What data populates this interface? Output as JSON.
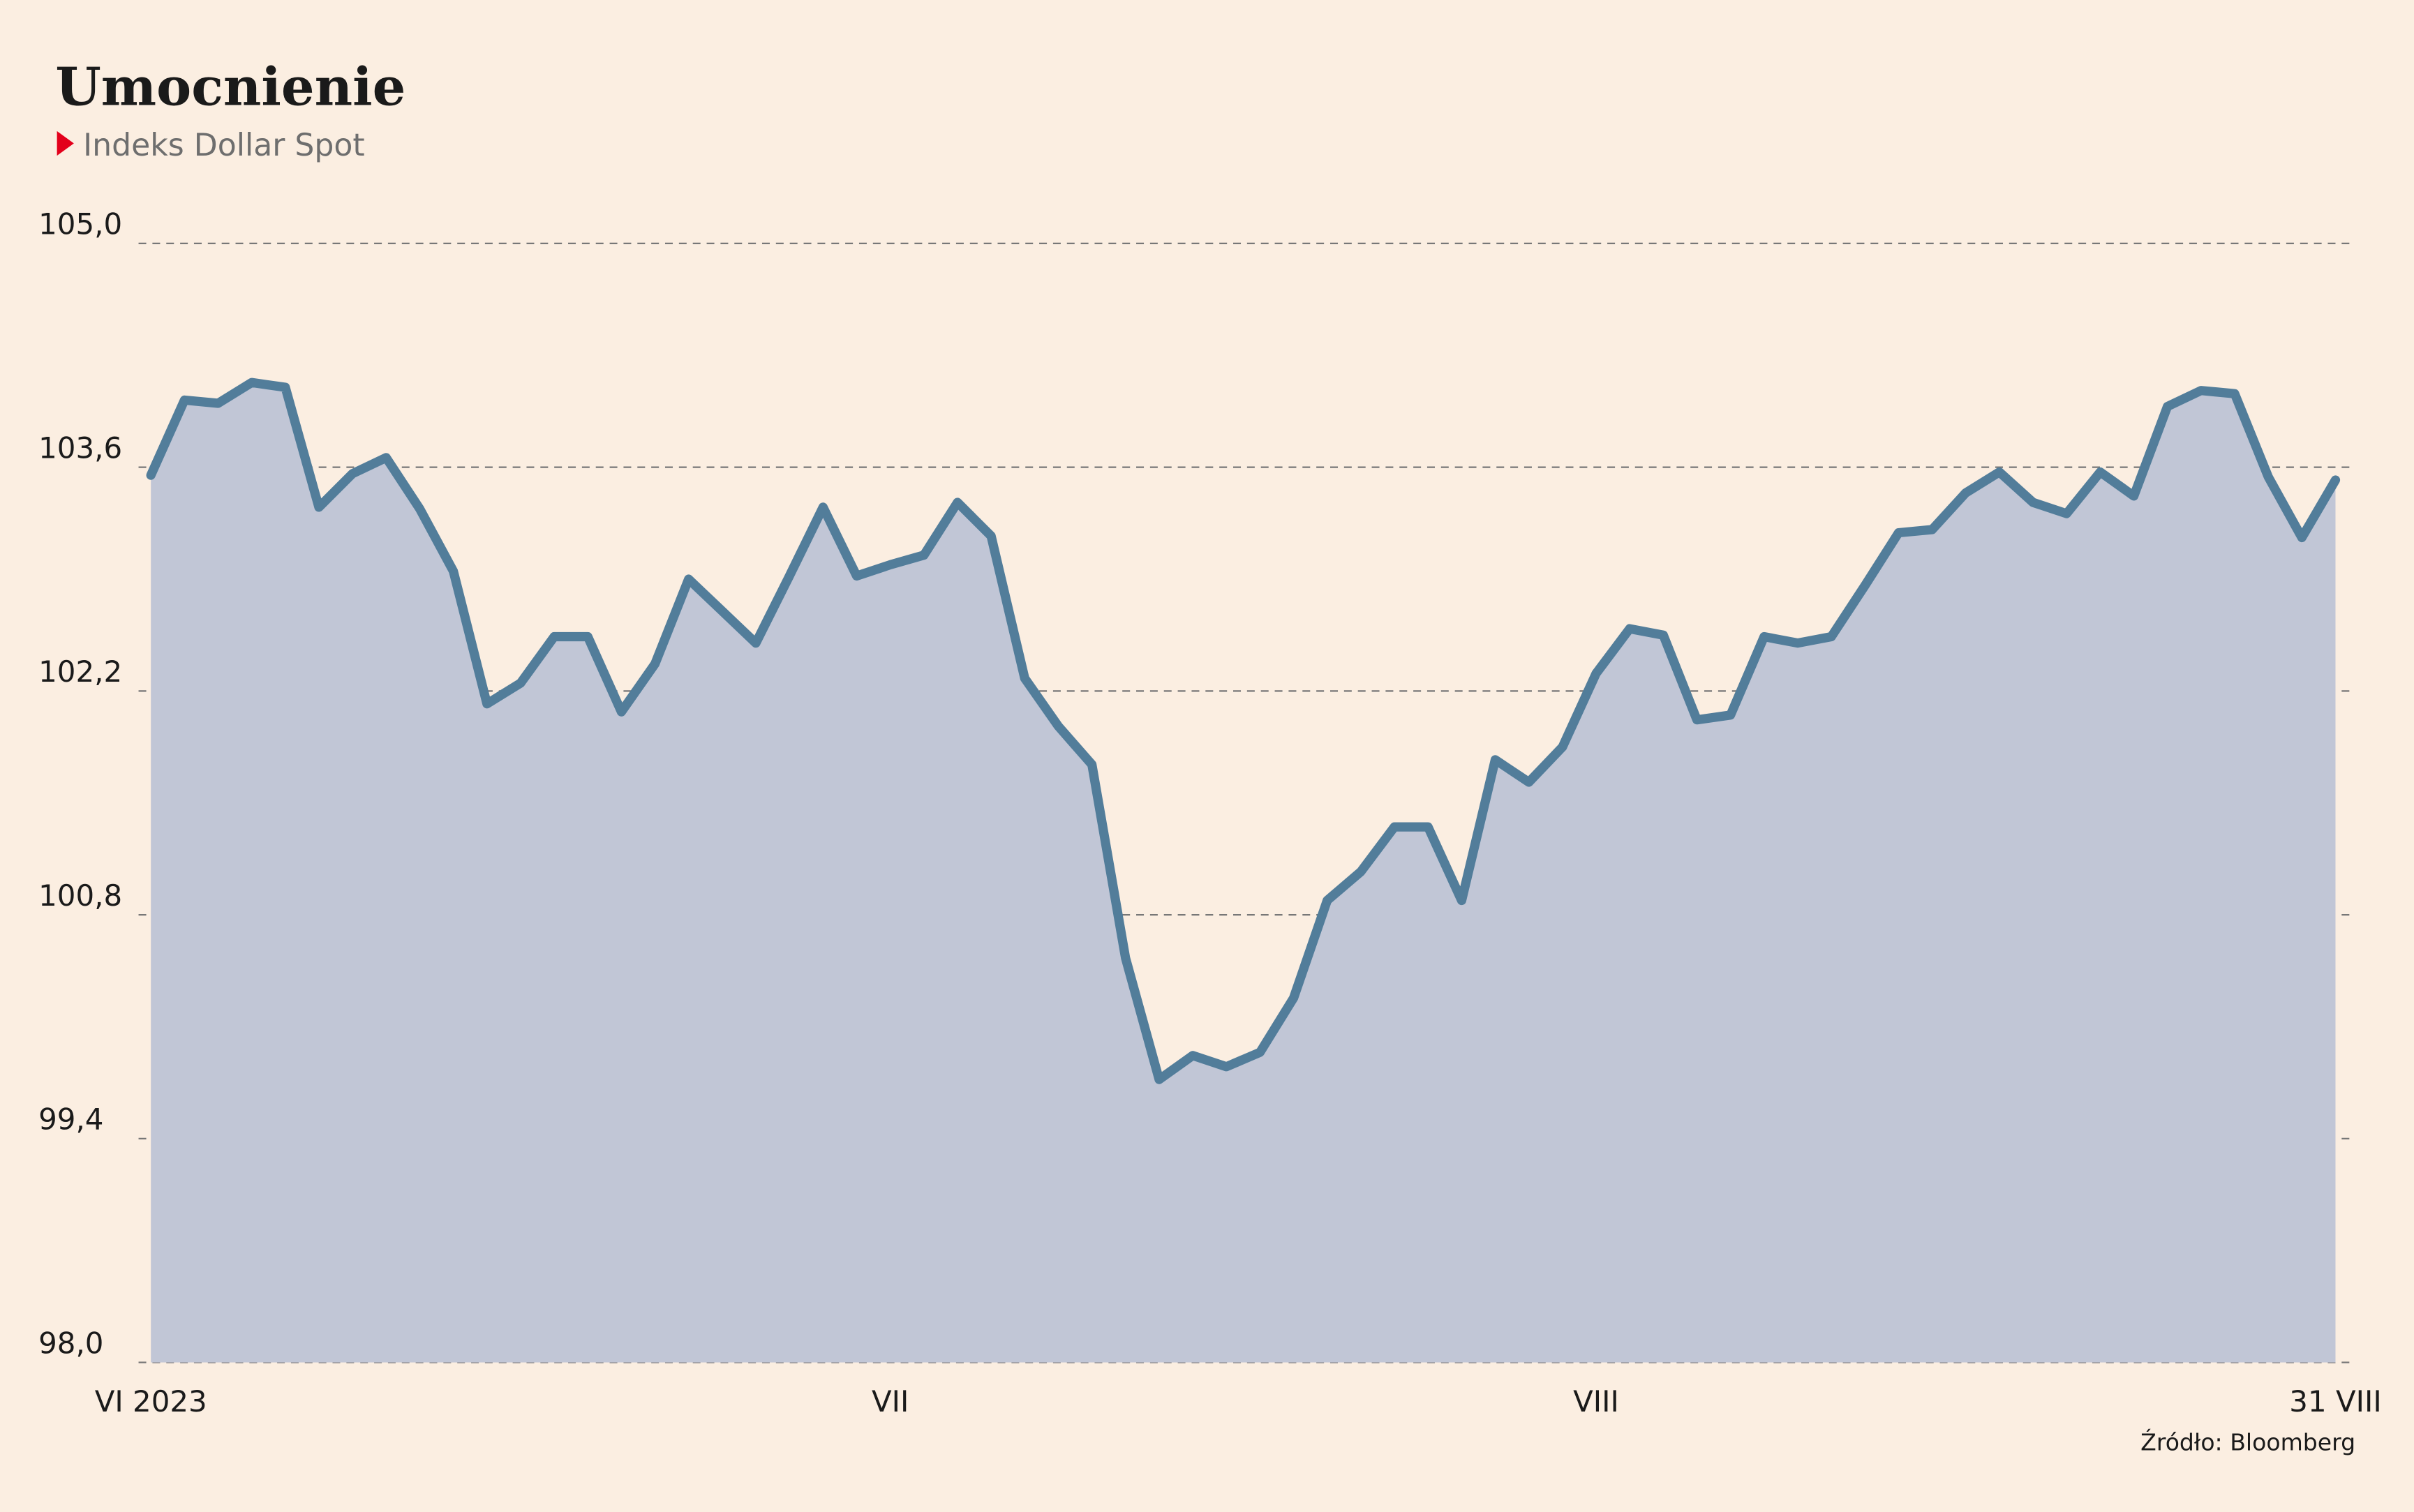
{
  "chart_data": {
    "type": "area",
    "title": "Umocnienie",
    "subtitle": "Indeks Dollar Spot",
    "source": "Źródło: Bloomberg",
    "categories": [
      "VI 2023",
      null,
      null,
      null,
      null,
      null,
      null,
      null,
      null,
      null,
      null,
      null,
      null,
      null,
      null,
      null,
      null,
      null,
      null,
      null,
      null,
      null,
      "VII",
      null,
      null,
      null,
      null,
      null,
      null,
      null,
      null,
      null,
      null,
      null,
      null,
      null,
      null,
      null,
      null,
      null,
      null,
      null,
      null,
      "VIII",
      null,
      null,
      null,
      null,
      null,
      null,
      null,
      null,
      null,
      null,
      null,
      null,
      null,
      null,
      null,
      null,
      null,
      null,
      null,
      null,
      null,
      "31 VIII"
    ],
    "values": [
      103.55,
      104.02,
      104.0,
      104.13,
      104.1,
      103.35,
      103.56,
      103.66,
      103.34,
      102.95,
      102.12,
      102.25,
      102.54,
      102.54,
      102.07,
      102.37,
      102.9,
      102.7,
      102.5,
      102.92,
      103.35,
      102.92,
      102.99,
      103.05,
      103.38,
      103.17,
      102.28,
      101.98,
      101.74,
      100.53,
      99.77,
      99.92,
      99.85,
      99.94,
      100.28,
      100.89,
      101.07,
      101.35,
      101.35,
      100.89,
      101.77,
      101.63,
      101.85,
      102.31,
      102.59,
      102.55,
      102.02,
      102.05,
      102.54,
      102.5,
      102.54,
      102.86,
      103.19,
      103.21,
      103.44,
      103.57,
      103.38,
      103.31,
      103.57,
      103.42,
      103.98,
      104.08,
      104.06,
      103.54,
      103.16,
      103.52
    ],
    "color": "#527d9a",
    "fill_color": "#c1c6d6",
    "ylim": [
      98,
      105
    ],
    "yticks": [
      {
        "value": 98,
        "label": "98,0"
      },
      {
        "value": 99.4,
        "label": "99,4"
      },
      {
        "value": 100.8,
        "label": "100,8"
      },
      {
        "value": 102.2,
        "label": "102,2"
      },
      {
        "value": 103.6,
        "label": "103,6"
      },
      {
        "value": 105,
        "label": "105,0"
      }
    ],
    "grid": true
  }
}
